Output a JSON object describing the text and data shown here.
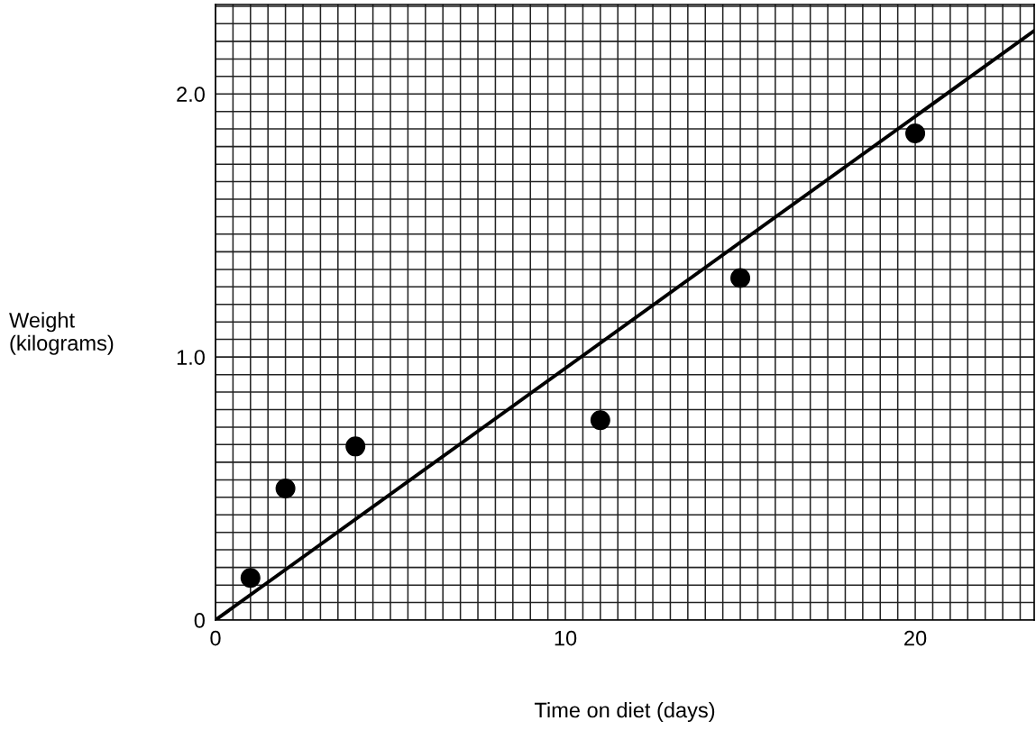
{
  "chart_data": {
    "type": "scatter",
    "xlabel": "Time on diet (days)",
    "ylabel": "Weight\n(kilograms)",
    "series": [
      {
        "color": "#000000",
        "marker": "circle",
        "x": [
          1,
          2,
          4,
          11,
          15,
          20
        ],
        "values": [
          0.16,
          0.5,
          0.66,
          0.76,
          1.3,
          1.85
        ]
      },
      {
        "type": "line",
        "color": "#000000",
        "marker": "none",
        "line_style": "solid",
        "x": [
          0,
          23.4
        ],
        "values": [
          0,
          2.24
        ]
      }
    ],
    "xlim": [
      0,
      23.4
    ],
    "ylim": [
      0,
      2.34
    ],
    "xticks": [
      0,
      {
        "value": 0.5,
        "label": null
      },
      {
        "value": 1,
        "label": null
      },
      {
        "value": 1.5,
        "label": null
      },
      {
        "value": 2,
        "label": null
      },
      {
        "value": 2.5,
        "label": null
      },
      {
        "value": 3,
        "label": null
      },
      {
        "value": 3.5,
        "label": null
      },
      {
        "value": 4,
        "label": null
      },
      {
        "value": 4.5,
        "label": null
      },
      {
        "value": 5,
        "label": null
      },
      {
        "value": 5.5,
        "label": null
      },
      {
        "value": 6,
        "label": null
      },
      {
        "value": 6.5,
        "label": null
      },
      {
        "value": 7,
        "label": null
      },
      {
        "value": 7.5,
        "label": null
      },
      {
        "value": 8,
        "label": null
      },
      {
        "value": 8.5,
        "label": null
      },
      {
        "value": 9,
        "label": null
      },
      {
        "value": 9.5,
        "label": null
      },
      10,
      {
        "value": 10.5,
        "label": null
      },
      {
        "value": 11,
        "label": null
      },
      {
        "value": 11.5,
        "label": null
      },
      {
        "value": 12,
        "label": null
      },
      {
        "value": 12.5,
        "label": null
      },
      {
        "value": 13,
        "label": null
      },
      {
        "value": 13.5,
        "label": null
      },
      {
        "value": 14,
        "label": null
      },
      {
        "value": 14.5,
        "label": null
      },
      {
        "value": 15,
        "label": null
      },
      {
        "value": 15.5,
        "label": null
      },
      {
        "value": 16,
        "label": null
      },
      {
        "value": 16.5,
        "label": null
      },
      {
        "value": 17,
        "label": null
      },
      {
        "value": 17.5,
        "label": null
      },
      {
        "value": 18,
        "label": null
      },
      {
        "value": 18.5,
        "label": null
      },
      {
        "value": 19,
        "label": null
      },
      {
        "value": 19.5,
        "label": null
      },
      20,
      {
        "value": 20.5,
        "label": null
      },
      {
        "value": 21,
        "label": null
      },
      {
        "value": 21.5,
        "label": null
      },
      {
        "value": 22,
        "label": null
      },
      {
        "value": 22.5,
        "label": null
      },
      {
        "value": 23,
        "label": null
      }
    ],
    "yticks": [
      0,
      {
        "value": 0.067,
        "label": null
      },
      {
        "value": 0.133,
        "label": null
      },
      {
        "value": 0.2,
        "label": null
      },
      {
        "value": 0.267,
        "label": null
      },
      {
        "value": 0.333,
        "label": null
      },
      {
        "value": 0.4,
        "label": null
      },
      {
        "value": 0.467,
        "label": null
      },
      {
        "value": 0.533,
        "label": null
      },
      {
        "value": 0.6,
        "label": null
      },
      {
        "value": 0.667,
        "label": null
      },
      {
        "value": 0.733,
        "label": null
      },
      {
        "value": 0.8,
        "label": null
      },
      {
        "value": 0.867,
        "label": null
      },
      {
        "value": 0.933,
        "label": null
      },
      {
        "value": 1.0,
        "label": "1.0"
      },
      {
        "value": 1.067,
        "label": null
      },
      {
        "value": 1.133,
        "label": null
      },
      {
        "value": 1.2,
        "label": null
      },
      {
        "value": 1.267,
        "label": null
      },
      {
        "value": 1.333,
        "label": null
      },
      {
        "value": 1.4,
        "label": null
      },
      {
        "value": 1.467,
        "label": null
      },
      {
        "value": 1.533,
        "label": null
      },
      {
        "value": 1.6,
        "label": null
      },
      {
        "value": 1.667,
        "label": null
      },
      {
        "value": 1.733,
        "label": null
      },
      {
        "value": 1.8,
        "label": null
      },
      {
        "value": 1.867,
        "label": null
      },
      {
        "value": 1.933,
        "label": null
      },
      {
        "value": 2.0,
        "label": "2.0"
      },
      {
        "value": 2.067,
        "label": null
      },
      {
        "value": 2.133,
        "label": null
      },
      {
        "value": 2.2,
        "label": null
      },
      {
        "value": 2.267,
        "label": null
      },
      {
        "value": 2.333,
        "label": null
      }
    ],
    "grid": true
  }
}
